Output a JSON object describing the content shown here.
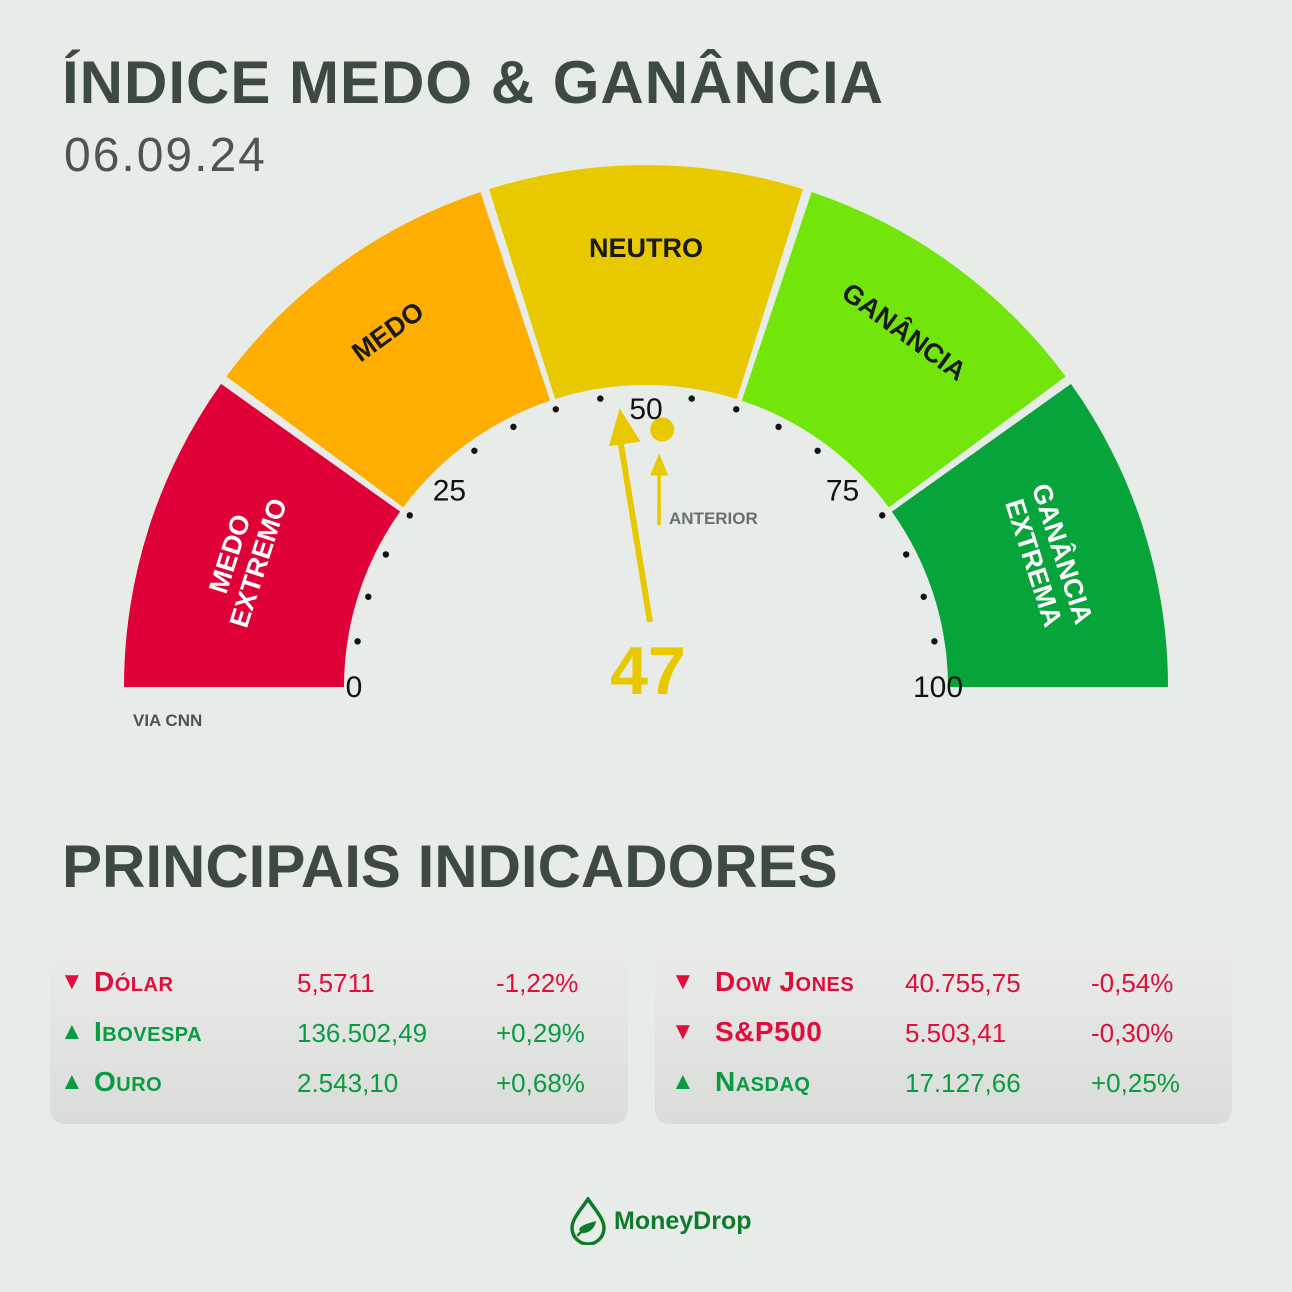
{
  "header": {
    "title": "ÍNDICE MEDO & GANÂNCIA",
    "date": "06.09.24"
  },
  "gauge": {
    "min": 0,
    "max": 100,
    "value": 47,
    "value_label": "47",
    "previous_value": 52,
    "previous_label": "ANTERIOR",
    "ticks": [
      "0",
      "25",
      "50",
      "75",
      "100"
    ],
    "segments": [
      {
        "label": "MEDO EXTREMO",
        "line1": "MEDO",
        "line2": "EXTREMO",
        "color": "#df0038",
        "text_color": "#ffffff"
      },
      {
        "label": "MEDO",
        "line1": "MEDO",
        "line2": "",
        "color": "#fdae00",
        "text_color": "#1a1a1a"
      },
      {
        "label": "NEUTRO",
        "line1": "NEUTRO",
        "line2": "",
        "color": "#e8c900",
        "text_color": "#1a1a1a"
      },
      {
        "label": "GANÂNCIA",
        "line1": "GANÂNCIA",
        "line2": "",
        "color": "#72e50a",
        "text_color": "#1a1a1a"
      },
      {
        "label": "GANÂNCIA EXTREMA",
        "line1": "GANÂNCIA",
        "line2": "EXTREMA",
        "color": "#07a33b",
        "text_color": "#ffffff"
      }
    ],
    "needle_color": "#e8c900",
    "source": "VIA CNN"
  },
  "indicators": {
    "title": "PRINCIPAIS INDICADORES",
    "left": [
      {
        "name": "Dólar",
        "value": "5,5711",
        "change": "-1,22%",
        "direction": "down"
      },
      {
        "name": "Ibovespa",
        "value": "136.502,49",
        "change": "+0,29%",
        "direction": "up"
      },
      {
        "name": "Ouro",
        "value": "2.543,10",
        "change": "+0,68%",
        "direction": "up"
      }
    ],
    "right": [
      {
        "name": "Dow Jones",
        "value": "40.755,75",
        "change": "-0,54%",
        "direction": "down"
      },
      {
        "name": "S&P500",
        "value": "5.503,41",
        "change": "-0,30%",
        "direction": "down"
      },
      {
        "name": "Nasdaq",
        "value": "17.127,66",
        "change": "+0,25%",
        "direction": "up"
      }
    ],
    "arrow_up": "▲",
    "arrow_down": "▼"
  },
  "footer": {
    "logo_text": "MoneyDrop",
    "logo_icon": "drop-leaf-icon"
  }
}
